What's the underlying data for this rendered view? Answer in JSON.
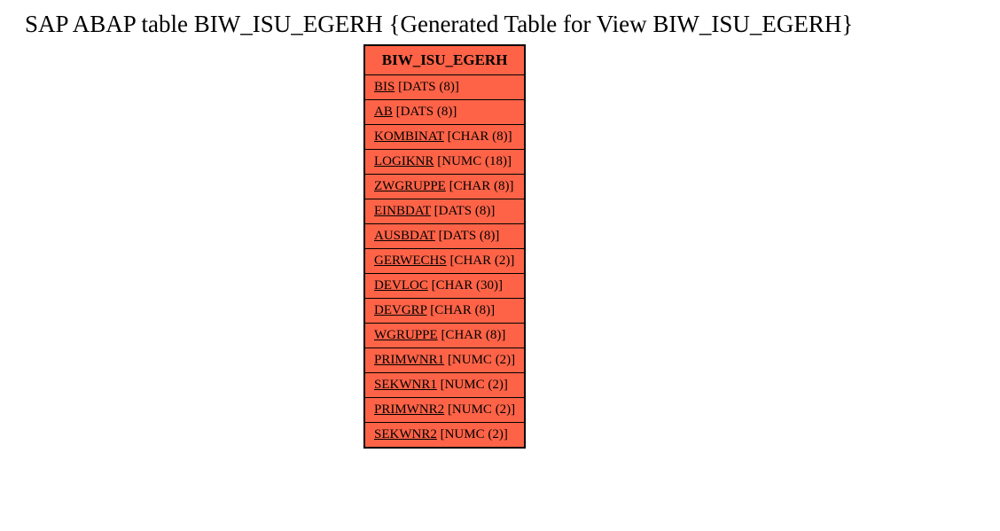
{
  "title": "SAP ABAP table BIW_ISU_EGERH {Generated Table for View BIW_ISU_EGERH}",
  "table": {
    "header": "BIW_ISU_EGERH",
    "bg_color": "#ff6347",
    "border_color": "#000000",
    "rows": [
      {
        "field": "BIS",
        "type": "[DATS (8)]"
      },
      {
        "field": "AB",
        "type": "[DATS (8)]"
      },
      {
        "field": "KOMBINAT",
        "type": "[CHAR (8)]"
      },
      {
        "field": "LOGIKNR",
        "type": "[NUMC (18)]"
      },
      {
        "field": "ZWGRUPPE",
        "type": "[CHAR (8)]"
      },
      {
        "field": "EINBDAT",
        "type": "[DATS (8)]"
      },
      {
        "field": "AUSBDAT",
        "type": "[DATS (8)]"
      },
      {
        "field": "GERWECHS",
        "type": "[CHAR (2)]"
      },
      {
        "field": "DEVLOC",
        "type": "[CHAR (30)]"
      },
      {
        "field": "DEVGRP",
        "type": "[CHAR (8)]"
      },
      {
        "field": "WGRUPPE",
        "type": "[CHAR (8)]"
      },
      {
        "field": "PRIMWNR1",
        "type": "[NUMC (2)]"
      },
      {
        "field": "SEKWNR1",
        "type": "[NUMC (2)]"
      },
      {
        "field": "PRIMWNR2",
        "type": "[NUMC (2)]"
      },
      {
        "field": "SEKWNR2",
        "type": "[NUMC (2)]"
      }
    ]
  }
}
